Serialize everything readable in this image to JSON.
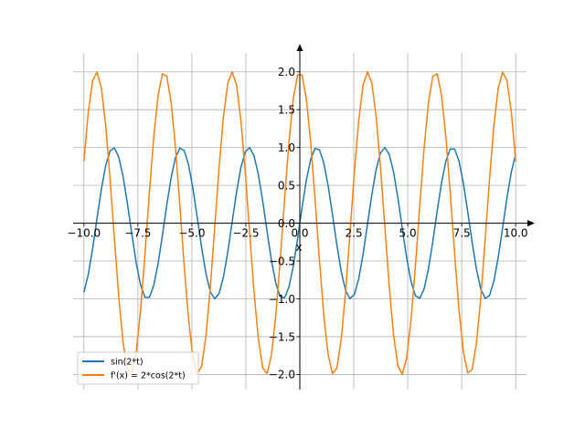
{
  "chart_data": {
    "type": "line",
    "title": "",
    "xlabel": "x",
    "ylabel": "",
    "xlim": [
      -10.5,
      10.5
    ],
    "ylim": [
      -2.2,
      2.25
    ],
    "grid": true,
    "legend_position": "bottom-left",
    "x_ticks": [
      -10.0,
      -7.5,
      -5.0,
      -2.5,
      0.0,
      2.5,
      5.0,
      7.5,
      10.0
    ],
    "x_tick_labels": [
      "−10.0",
      "−7.5",
      "−5.0",
      "−2.5",
      "0.0",
      "2.5",
      "5.0",
      "7.5",
      "10.0"
    ],
    "y_ticks": [
      -2.0,
      -1.5,
      -1.0,
      -0.5,
      0.0,
      0.5,
      1.0,
      1.5,
      2.0
    ],
    "y_tick_labels": [
      "−2.0",
      "−1.5",
      "−1.0",
      "−0.5",
      "0.0",
      "0.5",
      "1.0",
      "1.5",
      "2.0"
    ],
    "x_range": [
      -10,
      10
    ],
    "series": [
      {
        "name": "sin(2*t)",
        "expression": "sin(2*x)",
        "color": "#1f77b4"
      },
      {
        "name": "f'(x) = 2*cos(2*t)",
        "expression": "2*cos(2*x)",
        "color": "#ff7f0e"
      }
    ]
  }
}
